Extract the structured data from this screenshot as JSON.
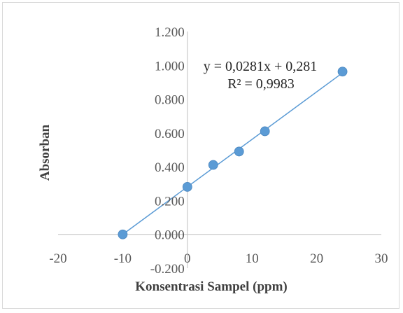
{
  "chart_data": {
    "type": "scatter",
    "xlabel": "Konsentrasi Sampel (ppm)",
    "ylabel": "Absorban",
    "xlim": [
      -20,
      30
    ],
    "ylim": [
      -0.2,
      1.2
    ],
    "x_ticks": [
      -20,
      -10,
      0,
      10,
      20,
      30
    ],
    "x_tick_labels": [
      "-20",
      "-10",
      "0",
      "10",
      "20",
      "30"
    ],
    "y_ticks": [
      -0.2,
      0,
      0.2,
      0.4,
      0.6,
      0.8,
      1.0,
      1.2
    ],
    "y_tick_labels": [
      "-0.200",
      "0.000",
      "0.200",
      "0.400",
      "0.600",
      "0.800",
      "1.000",
      "1.200"
    ],
    "grid": false,
    "series": [
      {
        "x": [
          -10,
          0,
          4,
          8,
          12,
          24
        ],
        "y": [
          0.0,
          0.281,
          0.411,
          0.49,
          0.61,
          0.963
        ],
        "color": "#5b9bd5"
      }
    ],
    "trendline": {
      "type": "linear",
      "slope": 0.0281,
      "intercept": 0.281,
      "x_range": [
        -10,
        24
      ],
      "color": "#5b9bd5",
      "equation": "y = 0,0281x + 0,281",
      "r_squared": "R² = 0,9983"
    },
    "axis_color": "#bfbfbf"
  }
}
